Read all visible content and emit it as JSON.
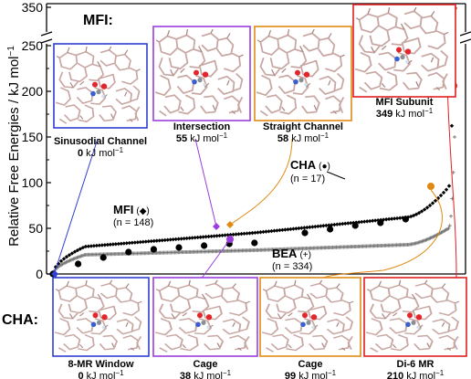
{
  "chart_data": {
    "type": "scatter",
    "ylabel": "Relative Free Energies / kJ mol",
    "ylabel_sup": "−1",
    "y_ticks": [
      0,
      50,
      100,
      150,
      200,
      250,
      350
    ],
    "y_axis_break": true,
    "ylim": [
      0,
      350
    ],
    "groups": [
      {
        "name": "MFI",
        "count_label": "(n = 148)",
        "marker": "diamond",
        "n": 148,
        "min": 0,
        "q1": 30,
        "median": 45,
        "q3": 62,
        "upper": 95,
        "max": 349
      },
      {
        "name": "CHA",
        "count_label": "(n = 17)",
        "marker": "circle",
        "n": 17,
        "values": [
          0,
          11,
          18,
          24,
          27,
          29,
          31,
          33,
          34,
          38,
          45,
          49,
          53,
          56,
          60,
          99,
          210
        ]
      },
      {
        "name": "BEA",
        "count_label": "(n = 334)",
        "marker": "plus",
        "n": 334,
        "min": 0,
        "q1": 21,
        "median": 26,
        "q3": 32,
        "upper": 50,
        "max": 150
      }
    ],
    "highlights": [
      {
        "label": "Sinusodial Channel",
        "value": 0,
        "framework": "MFI",
        "color": "#2f3fd1"
      },
      {
        "label": "Intersection",
        "value": 55,
        "framework": "MFI",
        "color": "#9b3ddc"
      },
      {
        "label": "Straight Channel",
        "value": 58,
        "framework": "MFI",
        "color": "#e08a14"
      },
      {
        "label": "MFI Subunit",
        "value": 349,
        "framework": "MFI",
        "color": "#e02020"
      },
      {
        "label": "8-MR Window",
        "value": 0,
        "framework": "CHA",
        "color": "#2f3fd1"
      },
      {
        "label": "Cage",
        "value": 38,
        "framework": "CHA",
        "color": "#9b3ddc"
      },
      {
        "label": "Cage",
        "value": 99,
        "framework": "CHA",
        "color": "#e08a14"
      },
      {
        "label": "Di-6 MR",
        "value": 210,
        "framework": "CHA",
        "color": "#e02020"
      }
    ]
  },
  "labels": {
    "mfi_heading": "MFI:",
    "cha_heading": "CHA:",
    "unit": "kJ mol",
    "unit_sup": "−1",
    "mfi_series": "MFI",
    "cha_series": "CHA",
    "bea_series": "BEA",
    "mfi_symbol": "(◆)",
    "cha_symbol": "(●)",
    "bea_symbol": "(+)"
  }
}
